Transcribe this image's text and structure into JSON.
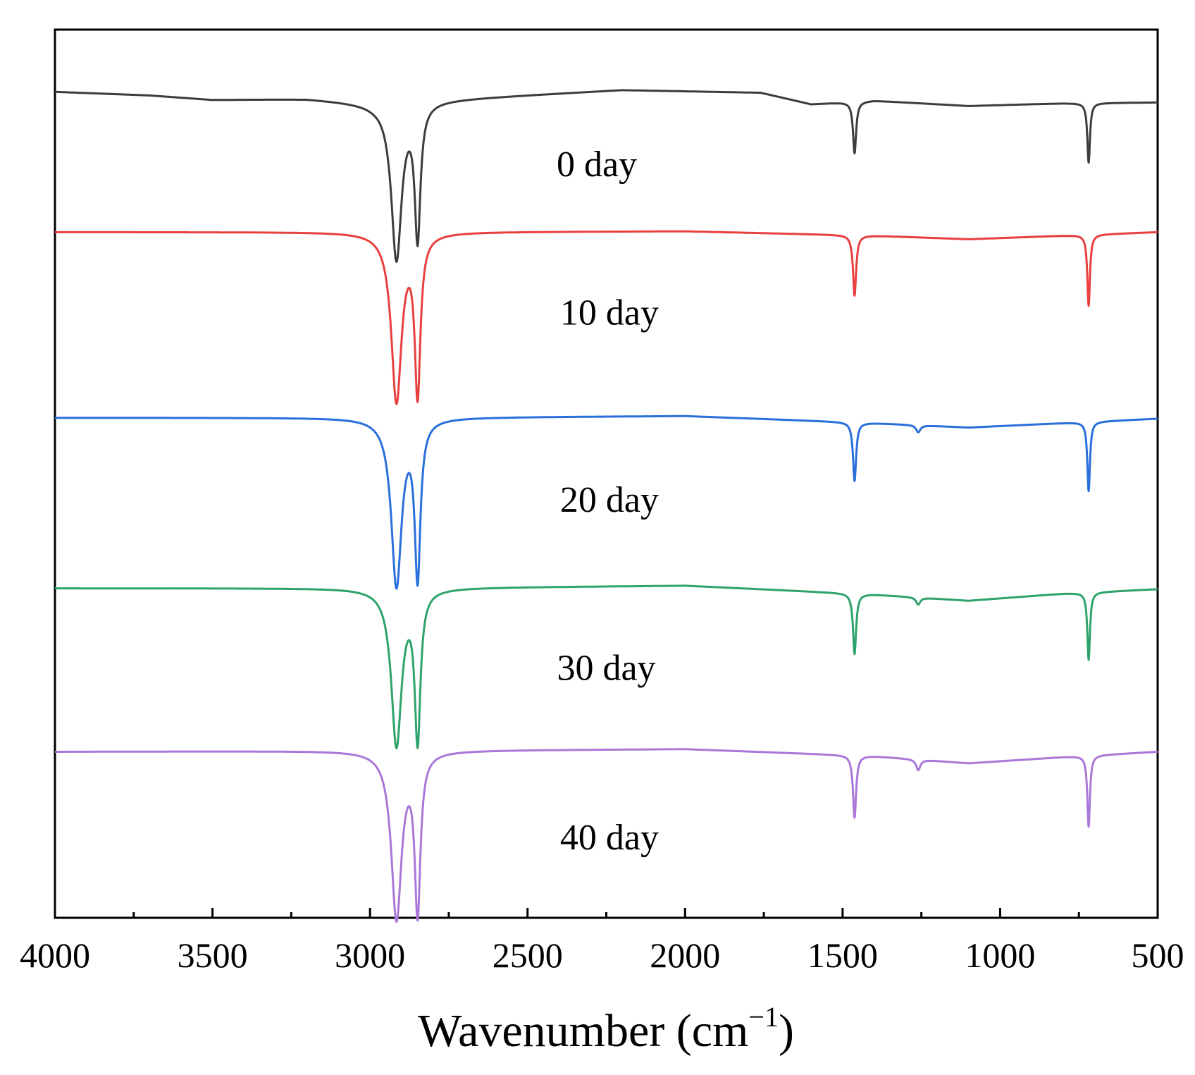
{
  "chart_data": {
    "type": "line",
    "title": "",
    "xlabel": "Wavenumber (cm",
    "xlabel_sup": "−1",
    "xlabel_close": ")",
    "ylabel": "",
    "xlim": [
      4000,
      500
    ],
    "x_reversed": true,
    "xticks": [
      4000,
      3500,
      3000,
      2500,
      2000,
      1500,
      1000,
      500
    ],
    "xticks_minor_step": 250,
    "y_ticks_shown": false,
    "grid": false,
    "legend": "inline labels next to each trace",
    "stacked_offset_spectra": true,
    "series": [
      {
        "name": "0 day",
        "color": "#3c3c3c",
        "baseline": 0.93,
        "shoulders": [
          {
            "x": 4000,
            "y": 0.93
          },
          {
            "x": 3700,
            "y": 0.926
          },
          {
            "x": 3500,
            "y": 0.921
          },
          {
            "x": 3200,
            "y": 0.922
          },
          {
            "x": 2990,
            "y": 0.917
          },
          {
            "x": 2780,
            "y": 0.921
          },
          {
            "x": 2200,
            "y": 0.932
          },
          {
            "x": 1760,
            "y": 0.929
          },
          {
            "x": 1600,
            "y": 0.916
          },
          {
            "x": 1500,
            "y": 0.918
          },
          {
            "x": 1400,
            "y": 0.92
          },
          {
            "x": 1100,
            "y": 0.914
          },
          {
            "x": 800,
            "y": 0.917
          },
          {
            "x": 500,
            "y": 0.918
          }
        ],
        "peaks": [
          {
            "x": 2916,
            "depth": 0.176,
            "width": 20
          },
          {
            "x": 2849,
            "depth": 0.149,
            "width": 11
          },
          {
            "x": 1462,
            "depth": 0.058,
            "width": 6
          },
          {
            "x": 719,
            "depth": 0.067,
            "width": 5
          }
        ]
      },
      {
        "name": "10 day",
        "color": "#e8403f",
        "baseline": 0.772,
        "shoulders": [
          {
            "x": 4000,
            "y": 0.772
          },
          {
            "x": 3000,
            "y": 0.772
          },
          {
            "x": 2000,
            "y": 0.773
          },
          {
            "x": 1400,
            "y": 0.768
          },
          {
            "x": 1100,
            "y": 0.764
          },
          {
            "x": 500,
            "y": 0.772
          }
        ],
        "peaks": [
          {
            "x": 2916,
            "depth": 0.189,
            "width": 20
          },
          {
            "x": 2849,
            "depth": 0.176,
            "width": 11
          },
          {
            "x": 1462,
            "depth": 0.068,
            "width": 6
          },
          {
            "x": 719,
            "depth": 0.08,
            "width": 5
          }
        ]
      },
      {
        "name": "20 day",
        "color": "#2a6fdb",
        "baseline": 0.563,
        "shoulders": [
          {
            "x": 4000,
            "y": 0.563
          },
          {
            "x": 3000,
            "y": 0.563
          },
          {
            "x": 2000,
            "y": 0.565
          },
          {
            "x": 1400,
            "y": 0.557
          },
          {
            "x": 1100,
            "y": 0.552
          },
          {
            "x": 800,
            "y": 0.557
          },
          {
            "x": 500,
            "y": 0.562
          }
        ],
        "peaks": [
          {
            "x": 2916,
            "depth": 0.188,
            "width": 20
          },
          {
            "x": 2849,
            "depth": 0.174,
            "width": 11
          },
          {
            "x": 1462,
            "depth": 0.066,
            "width": 6
          },
          {
            "x": 1260,
            "depth": 0.008,
            "width": 8
          },
          {
            "x": 719,
            "depth": 0.078,
            "width": 5
          }
        ]
      },
      {
        "name": "30 day",
        "color": "#2fa36b",
        "baseline": 0.371,
        "shoulders": [
          {
            "x": 4000,
            "y": 0.371
          },
          {
            "x": 3000,
            "y": 0.371
          },
          {
            "x": 2000,
            "y": 0.374
          },
          {
            "x": 1400,
            "y": 0.364
          },
          {
            "x": 1100,
            "y": 0.357
          },
          {
            "x": 800,
            "y": 0.365
          },
          {
            "x": 500,
            "y": 0.37
          }
        ],
        "peaks": [
          {
            "x": 2916,
            "depth": 0.176,
            "width": 20
          },
          {
            "x": 2849,
            "depth": 0.166,
            "width": 11
          },
          {
            "x": 1462,
            "depth": 0.068,
            "width": 6
          },
          {
            "x": 1260,
            "depth": 0.008,
            "width": 8
          },
          {
            "x": 719,
            "depth": 0.076,
            "width": 5
          }
        ]
      },
      {
        "name": "40 day",
        "color": "#a978d8",
        "baseline": 0.187,
        "shoulders": [
          {
            "x": 4000,
            "y": 0.187
          },
          {
            "x": 3000,
            "y": 0.188
          },
          {
            "x": 2000,
            "y": 0.19
          },
          {
            "x": 1400,
            "y": 0.182
          },
          {
            "x": 1100,
            "y": 0.174
          },
          {
            "x": 800,
            "y": 0.181
          },
          {
            "x": 500,
            "y": 0.187
          }
        ],
        "peaks": [
          {
            "x": 2916,
            "depth": 0.188,
            "width": 20
          },
          {
            "x": 2849,
            "depth": 0.176,
            "width": 11
          },
          {
            "x": 1462,
            "depth": 0.07,
            "width": 6
          },
          {
            "x": 1260,
            "depth": 0.012,
            "width": 8
          },
          {
            "x": 719,
            "depth": 0.08,
            "width": 5
          }
        ]
      }
    ]
  }
}
